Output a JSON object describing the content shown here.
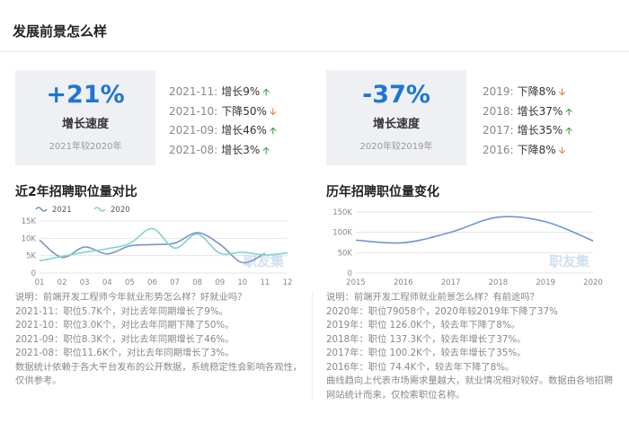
{
  "page": {
    "title": "发展前景怎么样"
  },
  "left": {
    "stat": {
      "value": "+21%",
      "label": "增长速度",
      "sub": "2021年较2020年"
    },
    "trends": [
      {
        "period": "2021-11:",
        "label": "增长9%",
        "dir": "up"
      },
      {
        "period": "2021-10:",
        "label": "下降50%",
        "dir": "down"
      },
      {
        "period": "2021-09:",
        "label": "增长46%",
        "dir": "up"
      },
      {
        "period": "2021-08:",
        "label": "增长3%",
        "dir": "up"
      }
    ],
    "section_title": "近2年招聘职位量对比",
    "watermark": "职友集",
    "notes": [
      "说明：前端开发工程师今年就业形势怎么样？好就业吗？",
      "2021-11：职位5.7K个，对比去年同期增长了9%。",
      "2021-10：职位3.0K个，对比去年同期下降了50%。",
      "2021-09：职位8.3K个，对比去年同期增长了46%。",
      "2021-08：职位11.6K个，对比去年同期增长了3%。",
      "数据统计依赖于各大平台发布的公开数据，系统稳定性会影响各观性，仅供参考。"
    ]
  },
  "right": {
    "stat": {
      "value": "-37%",
      "label": "增长速度",
      "sub": "2020年较2019年"
    },
    "trends": [
      {
        "period": "2019:",
        "label": "下降8%",
        "dir": "down"
      },
      {
        "period": "2018:",
        "label": "增长37%",
        "dir": "up"
      },
      {
        "period": "2017:",
        "label": "增长35%",
        "dir": "up"
      },
      {
        "period": "2016:",
        "label": "下降8%",
        "dir": "down"
      }
    ],
    "section_title": "历年招聘职位量变化",
    "watermark": "职友集",
    "notes": [
      "说明：前端开发工程师就业前景怎么样？有前途吗？",
      "2020年：职位79058个，2020年较2019年下降了37%",
      "2019年：职位 126.0K个，较去年下降了8%。",
      "2018年：职位 137.3K个，较去年增长了37%。",
      "2017年：职位 100.2K个，较去年增长了35%。",
      "2016年：职位 74.4K个，较去年下降了8%。",
      "曲线趋向上代表市场需求量越大，就业情况相对较好。数据由各地招聘网站统计而来，仅检索职位名称。"
    ]
  },
  "chart_data": [
    {
      "type": "line",
      "title": "近2年招聘职位量对比",
      "x": [
        "01",
        "02",
        "03",
        "04",
        "05",
        "06",
        "07",
        "08",
        "09",
        "10",
        "11",
        "12"
      ],
      "yticks": [
        "15K",
        "10K",
        "5K",
        "0"
      ],
      "ylim": [
        0,
        15000
      ],
      "grid": true,
      "legend": "top-left",
      "series": [
        {
          "name": "2021",
          "color": "#7b93c8",
          "values": [
            9500,
            4500,
            7500,
            5500,
            7800,
            8200,
            8600,
            11600,
            8300,
            3000,
            5700,
            null
          ]
        },
        {
          "name": "2020",
          "color": "#7fd6c8",
          "values": [
            3500,
            4800,
            6000,
            7000,
            8500,
            12800,
            7200,
            11200,
            5700,
            6000,
            5200,
            5800
          ]
        }
      ]
    },
    {
      "type": "line",
      "title": "历年招聘职位量变化",
      "x": [
        "2015",
        "2016",
        "2017",
        "2018",
        "2019",
        "2020"
      ],
      "yticks": [
        "150K",
        "100K",
        "50K",
        "0"
      ],
      "ylim": [
        0,
        150000
      ],
      "grid": true,
      "series": [
        {
          "name": "",
          "color": "#6d95d6",
          "values": [
            80800,
            74400,
            100200,
            137300,
            126000,
            79058
          ]
        }
      ]
    }
  ]
}
